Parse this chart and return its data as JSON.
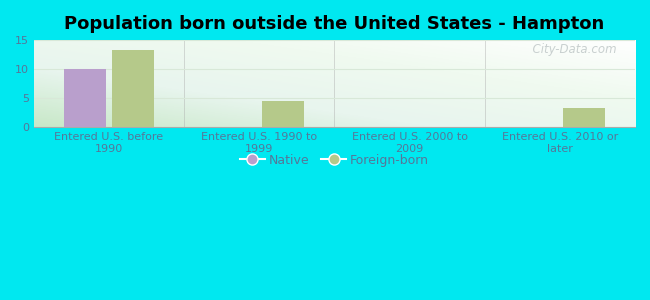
{
  "title": "Population born outside the United States - Hampton",
  "categories": [
    "Entered U.S. before\n1990",
    "Entered U.S. 1990 to\n1999",
    "Entered U.S. 2000 to\n2009",
    "Entered U.S. 2010 or\nlater"
  ],
  "native_values": [
    10,
    0,
    0,
    0
  ],
  "foreign_values": [
    13.3,
    4.5,
    0,
    3.4
  ],
  "native_color": "#b99fcc",
  "foreign_color": "#b5c98a",
  "bar_width": 0.28,
  "ylim": [
    0,
    15
  ],
  "yticks": [
    0,
    5,
    10,
    15
  ],
  "background_outer": "#00e8f0",
  "bg_top": "#e8f5ee",
  "bg_bottom": "#d0edd8",
  "watermark": "  City-Data.com",
  "legend_native": "Native",
  "legend_foreign": "Foreign-born",
  "title_fontsize": 13,
  "tick_fontsize": 8,
  "legend_fontsize": 9,
  "grid_color": "#d8e8d8",
  "tick_color": "#557799",
  "xlabel_color": "#557799"
}
